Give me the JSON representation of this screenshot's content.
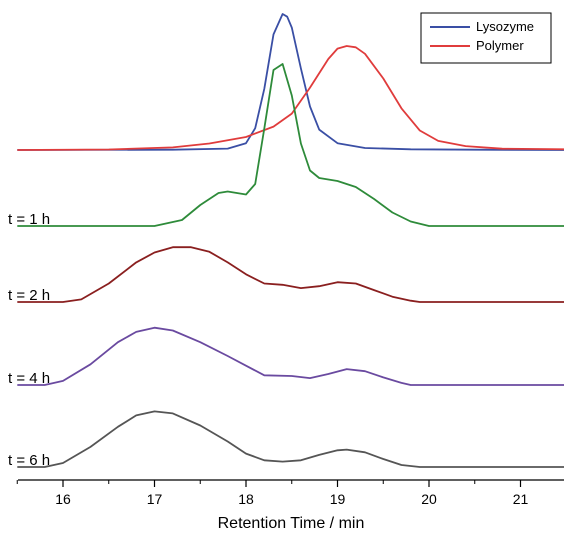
{
  "chart_data": {
    "type": "line",
    "title": "",
    "xlabel": "Retention Time / min",
    "ylabel": "",
    "xlim": [
      15.5,
      21.5
    ],
    "xticks": [
      16,
      17,
      18,
      19,
      20,
      21
    ],
    "tick_labels": [
      "16",
      "17",
      "18",
      "19",
      "20",
      "21"
    ],
    "grid": false,
    "legend": {
      "position": "top-right",
      "entries": [
        {
          "name": "Lysozyme",
          "color": "#3a4fa5"
        },
        {
          "name": "Polymer",
          "color": "#e03c3c"
        }
      ]
    },
    "series": [
      {
        "name": "Lysozyme",
        "color": "#3a4fa5",
        "x": [
          15.5,
          17.2,
          17.8,
          18.0,
          18.1,
          18.2,
          18.3,
          18.4,
          18.45,
          18.5,
          18.6,
          18.7,
          18.8,
          19.0,
          19.3,
          19.8,
          20.5,
          21.5
        ],
        "y": [
          0,
          0.002,
          0.01,
          0.05,
          0.16,
          0.45,
          0.85,
          1.0,
          0.98,
          0.9,
          0.6,
          0.32,
          0.15,
          0.05,
          0.015,
          0.005,
          0.002,
          0
        ]
      },
      {
        "name": "Polymer",
        "color": "#e03c3c",
        "x": [
          15.5,
          16.5,
          17.2,
          17.6,
          18.0,
          18.3,
          18.5,
          18.7,
          18.9,
          19.0,
          19.1,
          19.2,
          19.3,
          19.5,
          19.7,
          19.9,
          20.1,
          20.4,
          20.8,
          21.5
        ],
        "y": [
          0,
          0.004,
          0.02,
          0.05,
          0.1,
          0.18,
          0.28,
          0.48,
          0.7,
          0.78,
          0.8,
          0.79,
          0.74,
          0.55,
          0.32,
          0.15,
          0.07,
          0.03,
          0.01,
          0.005
        ]
      },
      {
        "name": "t = 1 h",
        "color": "#2e8b3a",
        "x": [
          15.5,
          17.0,
          17.3,
          17.5,
          17.7,
          17.8,
          17.9,
          18.0,
          18.1,
          18.2,
          18.3,
          18.4,
          18.5,
          18.6,
          18.7,
          18.8,
          19.0,
          19.2,
          19.4,
          19.6,
          19.8,
          20.0,
          21.5
        ],
        "y": [
          0,
          0.0,
          0.04,
          0.14,
          0.22,
          0.23,
          0.22,
          0.21,
          0.28,
          0.65,
          1.04,
          1.08,
          0.87,
          0.55,
          0.37,
          0.32,
          0.3,
          0.26,
          0.18,
          0.09,
          0.03,
          0.0,
          0
        ]
      },
      {
        "name": "t = 2 h",
        "color": "#8a1f1f",
        "x": [
          15.5,
          16.0,
          16.2,
          16.5,
          16.8,
          17.0,
          17.2,
          17.4,
          17.6,
          17.8,
          18.0,
          18.2,
          18.4,
          18.6,
          18.8,
          19.0,
          19.2,
          19.4,
          19.6,
          19.8,
          19.9,
          21.5
        ],
        "y": [
          0,
          0.0,
          0.04,
          0.28,
          0.6,
          0.75,
          0.83,
          0.83,
          0.76,
          0.6,
          0.42,
          0.28,
          0.26,
          0.21,
          0.24,
          0.3,
          0.28,
          0.18,
          0.08,
          0.02,
          0.0,
          0
        ]
      },
      {
        "name": "t = 4 h",
        "color": "#6a4aa0",
        "x": [
          15.5,
          15.8,
          16.0,
          16.3,
          16.6,
          16.8,
          17.0,
          17.2,
          17.5,
          17.8,
          18.0,
          18.2,
          18.5,
          18.7,
          18.9,
          19.1,
          19.3,
          19.5,
          19.7,
          19.8,
          21.5
        ],
        "y": [
          0,
          0.0,
          0.06,
          0.3,
          0.62,
          0.77,
          0.83,
          0.79,
          0.62,
          0.42,
          0.28,
          0.14,
          0.13,
          0.1,
          0.16,
          0.23,
          0.2,
          0.11,
          0.03,
          0.0,
          0
        ]
      },
      {
        "name": "t = 6 h",
        "color": "#555555",
        "x": [
          15.5,
          15.8,
          16.0,
          16.3,
          16.6,
          16.8,
          17.0,
          17.2,
          17.5,
          17.8,
          18.0,
          18.2,
          18.4,
          18.6,
          18.8,
          19.0,
          19.1,
          19.3,
          19.5,
          19.7,
          19.9,
          21.5
        ],
        "y": [
          0,
          0.0,
          0.06,
          0.3,
          0.6,
          0.77,
          0.83,
          0.8,
          0.62,
          0.38,
          0.2,
          0.1,
          0.08,
          0.1,
          0.18,
          0.25,
          0.26,
          0.22,
          0.12,
          0.03,
          0.0,
          0
        ]
      }
    ],
    "trace_labels": [
      "t = 1 h",
      "t = 2 h",
      "t = 4 h",
      "t = 6 h"
    ]
  }
}
